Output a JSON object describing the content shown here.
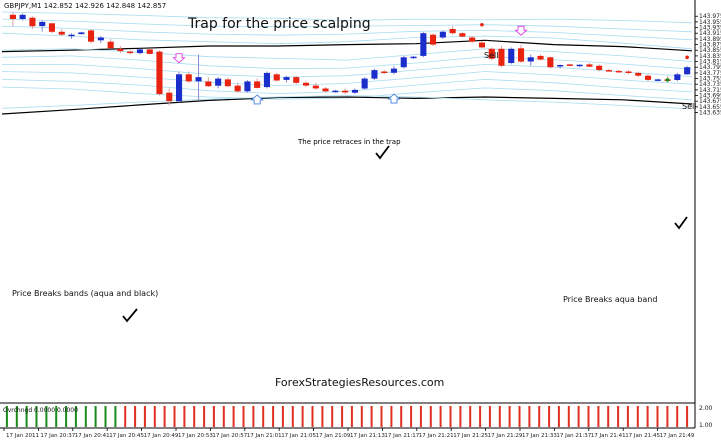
{
  "window": {
    "header": "GBPJPY,M1  142.852 142.926 142.848 142.857",
    "title": "Trap for the price scalping",
    "watermark": "ForexStrategiesResources.com"
  },
  "annotations": {
    "sell_top": "Sell",
    "sell_right": "Sell",
    "retrace": "The price retraces in the trap",
    "breaks_left": "Price Breaks bands (aqua and black)",
    "breaks_right": "Price Breaks aqua band"
  },
  "indicator": {
    "label": "Ovrchngd  0.0000 0.0000",
    "right_value": "1.00",
    "top_value": "2.00"
  },
  "colors": {
    "bull": "#1a2ecc",
    "bear": "#e8230f",
    "aqua_band": "#a8dcf0",
    "black_band": "#000000",
    "ind_green": "#1a8a1a",
    "ind_red": "#e03020",
    "marker_pink": "#e040e0",
    "marker_blue": "#4080e0"
  },
  "chart_data": {
    "type": "candlestick",
    "symbol": "GBPJPY,M1",
    "ylim": [
      142.62,
      143.99
    ],
    "y_ticks": [
      "143.975",
      "143.955",
      "143.935",
      "143.915",
      "143.895",
      "143.875",
      "143.855",
      "143.835",
      "143.815",
      "143.795",
      "143.775",
      "143.755",
      "143.735",
      "143.715",
      "143.695",
      "143.675",
      "143.655",
      "143.635"
    ],
    "y_tick_values": [
      143.975,
      143.955,
      143.935,
      143.915,
      143.895,
      143.875,
      143.855,
      143.835,
      143.815,
      143.795,
      143.775,
      143.755,
      143.735,
      143.715,
      143.695,
      143.675,
      143.655,
      143.635
    ],
    "x_ticks": [
      "17 Jan 2011",
      "17 Jan 20:37",
      "17 Jan 20:41",
      "17 Jan 20:45",
      "17 Jan 20:49",
      "17 Jan 20:53",
      "17 Jan 20:57",
      "17 Jan 21:01",
      "17 Jan 21:05",
      "17 Jan 21:09",
      "17 Jan 21:13",
      "17 Jan 21:17",
      "17 Jan 21:21",
      "17 Jan 21:25",
      "17 Jan 21:29",
      "17 Jan 21:33",
      "17 Jan 21:37",
      "17 Jan 21:41",
      "17 Jan 21:45",
      "17 Jan 21:49"
    ],
    "candles": [
      [
        143.98,
        143.99,
        143.94,
        143.965
      ],
      [
        143.965,
        143.985,
        143.96,
        143.98
      ],
      [
        143.97,
        143.975,
        143.93,
        143.94
      ],
      [
        143.94,
        143.96,
        143.92,
        143.955
      ],
      [
        143.95,
        143.952,
        143.915,
        143.92
      ],
      [
        143.92,
        143.93,
        143.905,
        143.91
      ],
      [
        143.905,
        143.915,
        143.895,
        143.91
      ],
      [
        143.912,
        143.92,
        143.91,
        143.918
      ],
      [
        143.925,
        143.93,
        143.88,
        143.885
      ],
      [
        143.89,
        143.905,
        143.88,
        143.9
      ],
      [
        143.885,
        143.895,
        143.86,
        143.862
      ],
      [
        143.86,
        143.87,
        143.845,
        143.852
      ],
      [
        143.85,
        143.855,
        143.84,
        143.845
      ],
      [
        143.845,
        143.86,
        143.84,
        143.858
      ],
      [
        143.858,
        143.862,
        143.84,
        143.842
      ],
      [
        143.85,
        143.855,
        143.695,
        143.7
      ],
      [
        143.705,
        143.72,
        143.66,
        143.675
      ],
      [
        143.675,
        143.78,
        143.67,
        143.77
      ],
      [
        143.77,
        143.78,
        143.74,
        143.745
      ],
      [
        143.745,
        143.84,
        143.68,
        143.76
      ],
      [
        143.745,
        143.76,
        143.725,
        143.728
      ],
      [
        143.73,
        143.76,
        143.72,
        143.755
      ],
      [
        143.752,
        143.758,
        143.725,
        143.728
      ],
      [
        143.73,
        143.74,
        143.705,
        143.71
      ],
      [
        143.71,
        143.75,
        143.705,
        143.745
      ],
      [
        143.745,
        143.755,
        143.72,
        143.722
      ],
      [
        143.725,
        143.78,
        143.72,
        143.775
      ],
      [
        143.77,
        143.775,
        143.745,
        143.748
      ],
      [
        143.75,
        143.765,
        143.74,
        143.76
      ],
      [
        143.76,
        143.765,
        143.735,
        143.74
      ],
      [
        143.74,
        143.745,
        143.725,
        143.73
      ],
      [
        143.73,
        143.74,
        143.715,
        143.72
      ],
      [
        143.72,
        143.725,
        143.705,
        143.71
      ],
      [
        143.71,
        143.715,
        143.705,
        143.712
      ],
      [
        143.712,
        143.72,
        143.7,
        143.706
      ],
      [
        143.705,
        143.72,
        143.7,
        143.715
      ],
      [
        143.72,
        143.76,
        143.715,
        143.755
      ],
      [
        143.755,
        143.79,
        143.75,
        143.785
      ],
      [
        143.78,
        143.785,
        143.77,
        143.775
      ],
      [
        143.775,
        143.8,
        143.77,
        143.79
      ],
      [
        143.795,
        143.835,
        143.79,
        143.83
      ],
      [
        143.83,
        143.835,
        143.825,
        143.832
      ],
      [
        143.835,
        143.92,
        143.83,
        143.915
      ],
      [
        143.91,
        143.915,
        143.87,
        143.875
      ],
      [
        143.9,
        143.925,
        143.895,
        143.92
      ],
      [
        143.93,
        143.94,
        143.91,
        143.915
      ],
      [
        143.915,
        143.92,
        143.9,
        143.903
      ],
      [
        143.9,
        143.905,
        143.88,
        143.885
      ],
      [
        143.882,
        143.888,
        143.862,
        143.865
      ],
      [
        143.86,
        143.865,
        143.82,
        143.825
      ],
      [
        143.86,
        143.87,
        143.795,
        143.8
      ],
      [
        143.81,
        143.865,
        143.805,
        143.86
      ],
      [
        143.862,
        143.875,
        143.81,
        143.815
      ],
      [
        143.815,
        143.84,
        143.8,
        143.83
      ],
      [
        143.835,
        143.84,
        143.82,
        143.822
      ],
      [
        143.83,
        143.833,
        143.79,
        143.795
      ],
      [
        143.8,
        143.805,
        143.79,
        143.803
      ],
      [
        143.805,
        143.808,
        143.798,
        143.8
      ],
      [
        143.8,
        143.805,
        143.795,
        143.804
      ],
      [
        143.805,
        143.81,
        143.795,
        143.797
      ],
      [
        143.8,
        143.805,
        143.78,
        143.785
      ],
      [
        143.785,
        143.79,
        143.78,
        143.782
      ],
      [
        143.782,
        143.785,
        143.775,
        143.78
      ],
      [
        143.78,
        143.785,
        143.77,
        143.775
      ],
      [
        143.775,
        143.78,
        143.76,
        143.765
      ],
      [
        143.765,
        143.77,
        143.745,
        143.75
      ],
      [
        143.748,
        143.755,
        143.745,
        143.752
      ],
      [
        143.752,
        143.765,
        143.745,
        143.748
      ],
      [
        143.75,
        143.775,
        143.745,
        143.77
      ],
      [
        143.77,
        143.8,
        143.768,
        143.795
      ]
    ],
    "series": [
      {
        "name": "aqua-band-1",
        "values": [
          143.99,
          143.985,
          143.978,
          143.97,
          143.968,
          143.96,
          143.965,
          143.962,
          143.965,
          143.96,
          143.952
        ]
      },
      {
        "name": "aqua-band-2",
        "values": [
          143.965,
          143.958,
          143.948,
          143.94,
          143.938,
          143.94,
          143.942,
          143.945,
          143.94,
          143.93,
          143.92
        ]
      },
      {
        "name": "aqua-band-3",
        "values": [
          143.94,
          143.932,
          143.92,
          143.912,
          143.908,
          143.912,
          143.922,
          143.925,
          143.918,
          143.905,
          143.892
        ]
      },
      {
        "name": "aqua-band-4",
        "values": [
          143.915,
          143.905,
          143.892,
          143.885,
          143.878,
          143.885,
          143.9,
          143.905,
          143.898,
          143.88,
          143.86
        ]
      },
      {
        "name": "black-band-upper",
        "values": [
          143.85,
          143.855,
          143.862,
          143.87,
          143.87,
          143.875,
          143.878,
          143.89,
          143.875,
          143.868,
          143.853
        ]
      },
      {
        "name": "aqua-band-5",
        "values": [
          143.855,
          143.86,
          143.848,
          143.832,
          143.826,
          143.82,
          143.84,
          143.86,
          143.85,
          143.835,
          143.815
        ]
      },
      {
        "name": "aqua-band-6",
        "values": [
          143.83,
          143.835,
          143.82,
          143.8,
          143.79,
          143.792,
          143.81,
          143.832,
          143.822,
          143.806,
          143.788
        ]
      },
      {
        "name": "aqua-band-7",
        "values": [
          143.805,
          143.805,
          143.79,
          143.77,
          143.76,
          143.765,
          143.785,
          143.805,
          143.795,
          143.778,
          143.762
        ]
      },
      {
        "name": "aqua-band-8",
        "values": [
          143.78,
          143.775,
          143.76,
          143.742,
          143.73,
          143.738,
          143.758,
          143.78,
          143.768,
          143.75,
          143.735
        ]
      },
      {
        "name": "aqua-band-9",
        "values": [
          143.752,
          143.745,
          143.732,
          143.712,
          143.702,
          143.71,
          143.732,
          143.752,
          143.74,
          143.722,
          143.708
        ]
      },
      {
        "name": "aqua-band-10",
        "values": [
          143.725,
          143.718,
          143.702,
          143.69,
          143.682,
          143.686,
          143.705,
          143.722,
          143.712,
          143.695,
          143.68
        ]
      },
      {
        "name": "black-band-lower",
        "values": [
          143.63,
          143.645,
          143.662,
          143.678,
          143.688,
          143.69,
          143.685,
          143.69,
          143.685,
          143.68,
          143.665
        ]
      },
      {
        "name": "aqua-band-11",
        "values": [
          143.65,
          143.66,
          143.672,
          143.682,
          143.69,
          143.695,
          143.69,
          143.68,
          143.672,
          143.66,
          143.648
        ]
      }
    ],
    "markers": [
      {
        "type": "down-arrow",
        "candle": 17,
        "price": 143.825,
        "color": "#e040e0"
      },
      {
        "type": "down-arrow",
        "candle": 52,
        "price": 143.922,
        "color": "#e040e0"
      },
      {
        "type": "up-arrow",
        "candle": 25,
        "price": 143.683,
        "color": "#4080e0"
      },
      {
        "type": "up-arrow",
        "candle": 39,
        "price": 143.686,
        "color": "#4080e0"
      },
      {
        "type": "dot",
        "candle": 48,
        "price": 143.945,
        "color": "#e8230f"
      },
      {
        "type": "dot",
        "candle": 69,
        "price": 143.83,
        "color": "#e8230f"
      },
      {
        "type": "dot",
        "candle": 67,
        "price": 143.75,
        "color": "#1a8a1a"
      }
    ],
    "indicator_bars": {
      "green_count": 12,
      "red_count": 58
    }
  }
}
